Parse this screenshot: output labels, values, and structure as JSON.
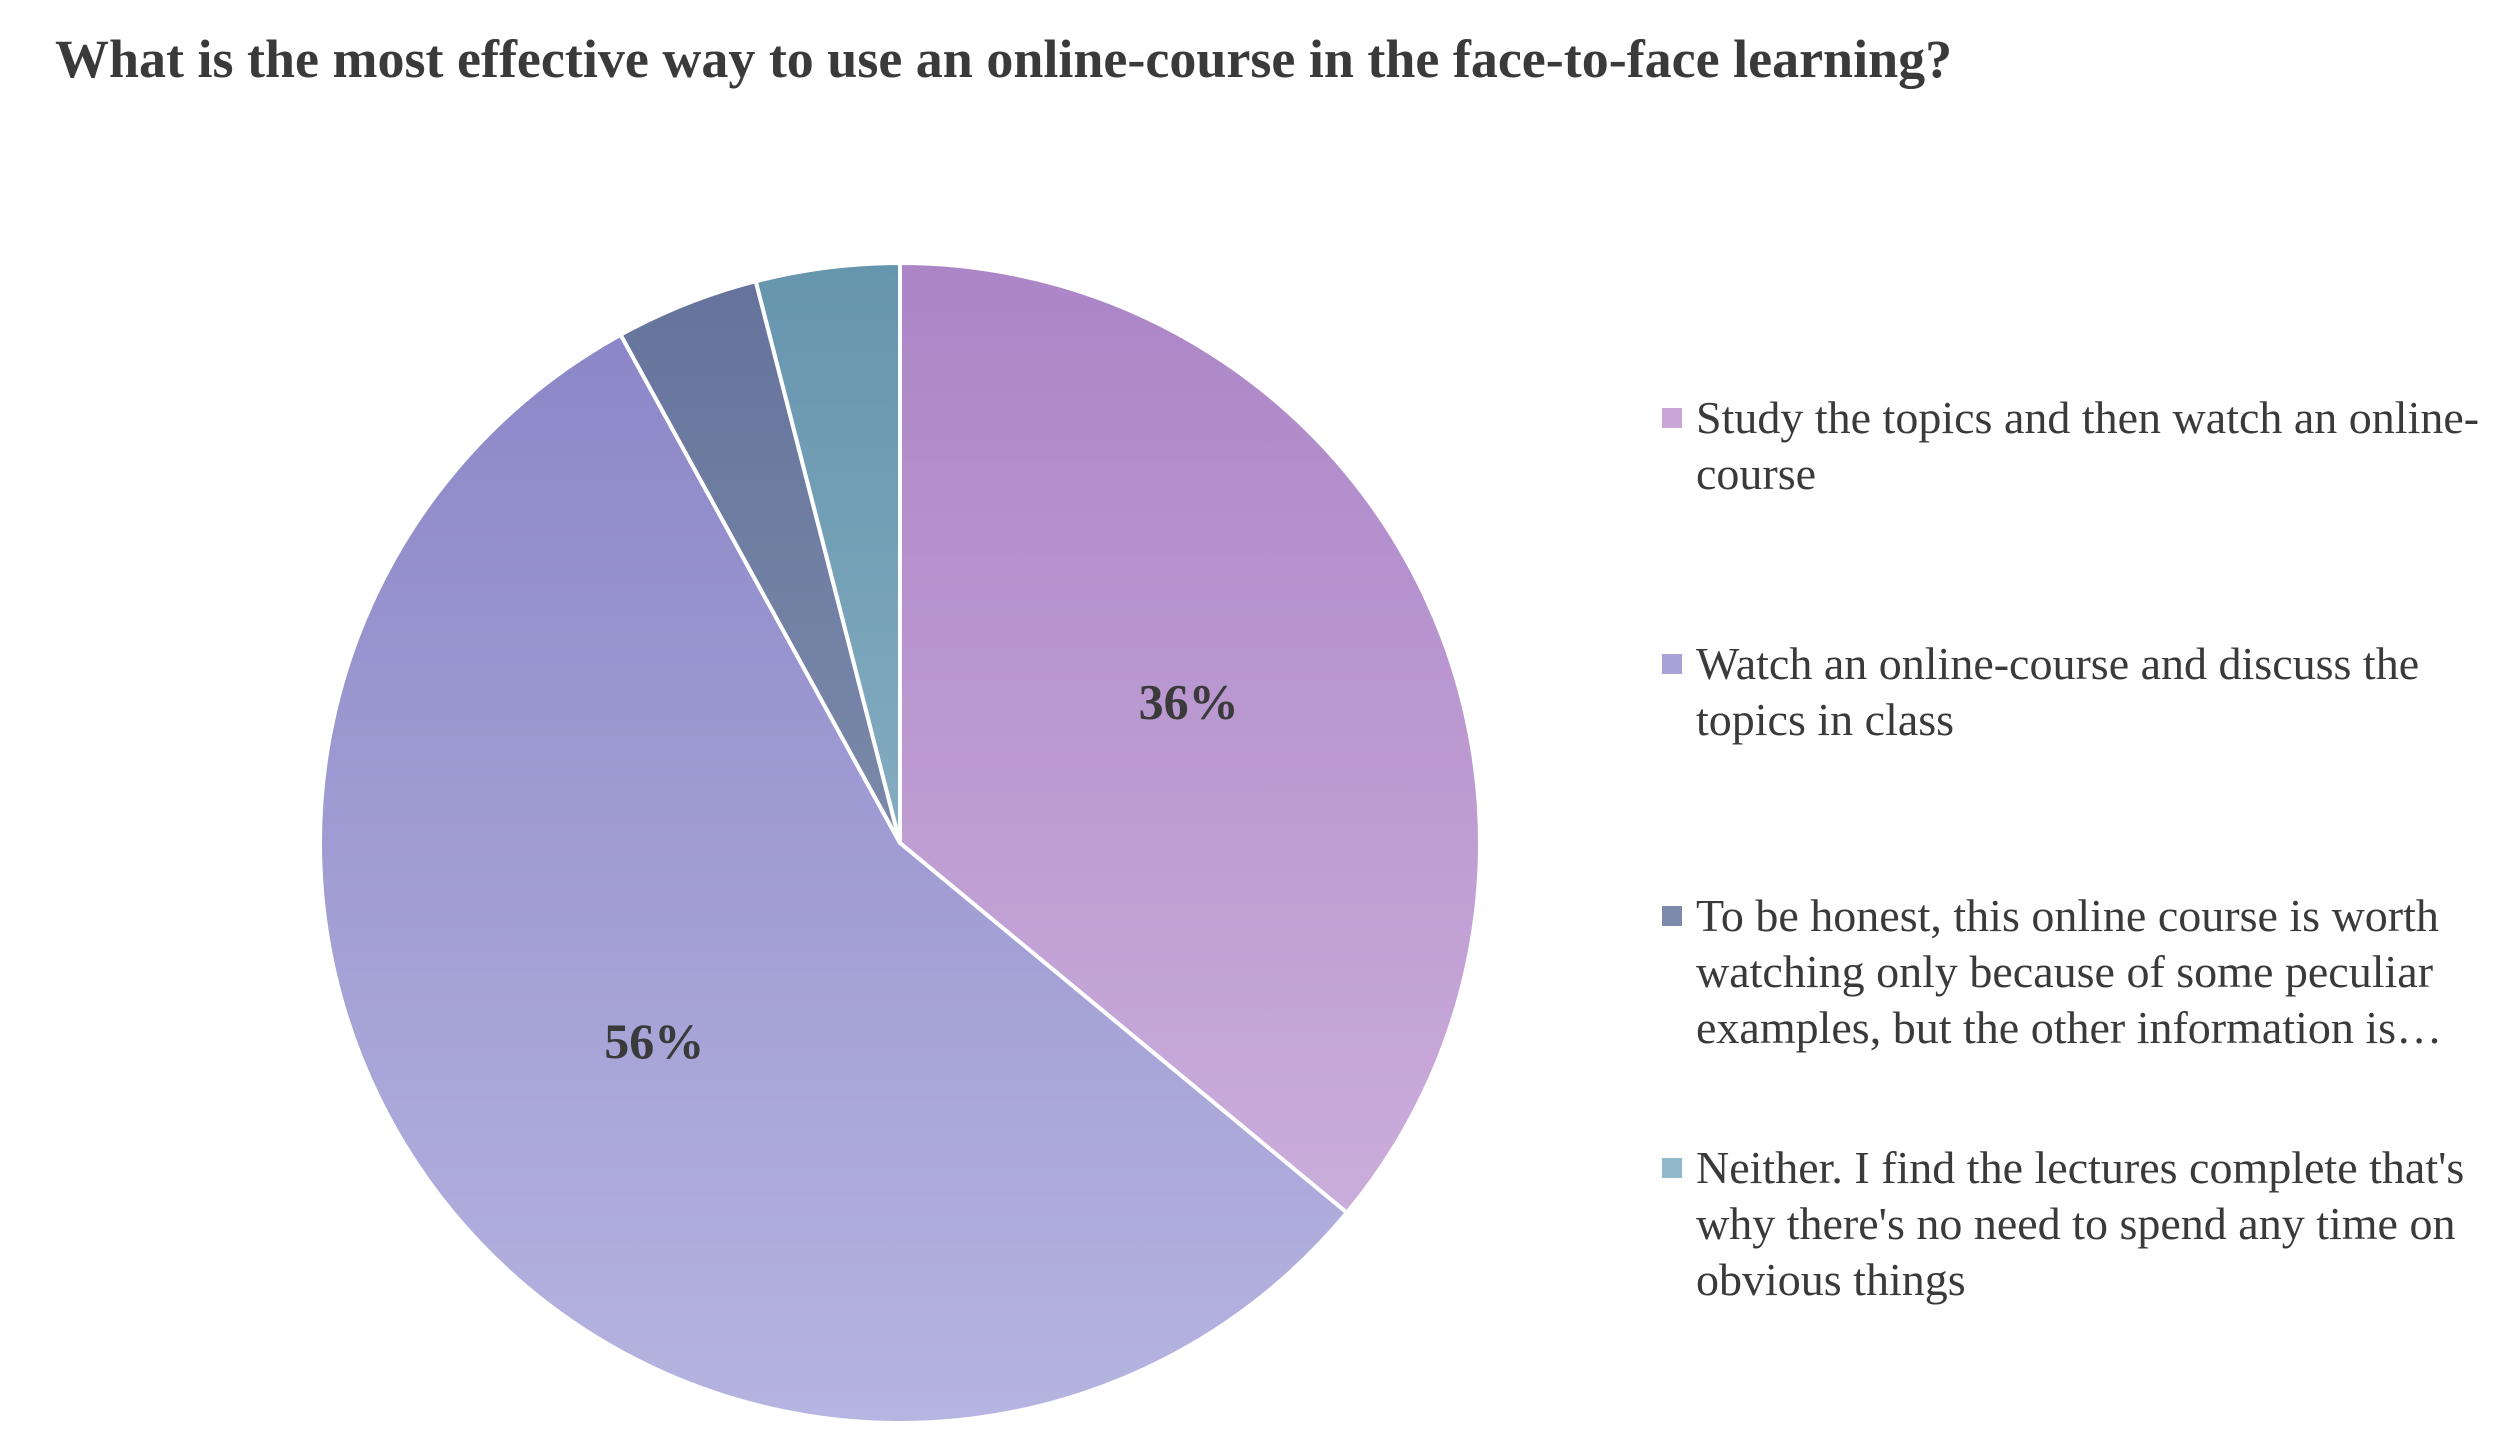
{
  "chart_data": {
    "type": "pie",
    "title": "What is the most effective way to use an online-course in the face-to-face learning?",
    "categories": [
      "Study the topics and then watch an online-course",
      "Watch an online-course and discuss the topics in class",
      "To be honest, this online course is worth watching only because of some peculiar examples, but the other information is…",
      "Neither. I find the lectures complete that's why there's no need to spend any time on obvious things"
    ],
    "values": [
      36,
      56,
      4,
      4
    ],
    "data_labels": [
      "36%",
      "",
      "",
      ""
    ],
    "data_labels_slice2": [
      "",
      "56%",
      "",
      ""
    ],
    "colors": [
      {
        "top": "#ab85c6",
        "bottom": "#d2b6e0"
      },
      {
        "top": "#8984c6",
        "bottom": "#b6b4e0"
      },
      {
        "top": "#65739c",
        "bottom": "#8f9fb6"
      },
      {
        "top": "#6695ae",
        "bottom": "#a1c3d2"
      }
    ],
    "legend_swatch_colors": [
      "#c9a6d8",
      "#a7a3d8",
      "#7d8aae",
      "#92b8cb"
    ],
    "legend": "right"
  }
}
